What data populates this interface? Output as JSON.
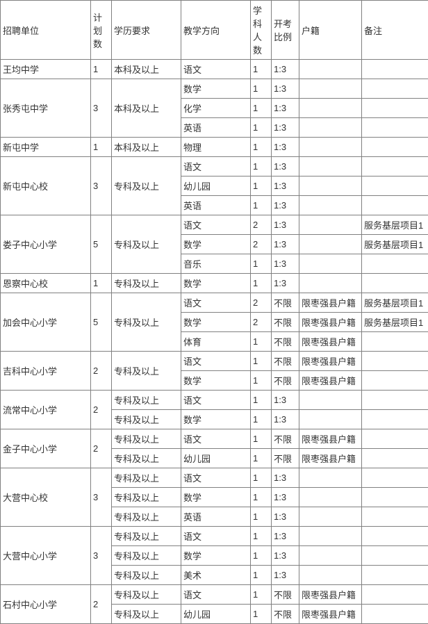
{
  "table": {
    "columns": [
      "招聘单位",
      "计划数",
      "学历要求",
      "教学方向",
      "学科人数",
      "开考比例",
      "户籍",
      "备注"
    ],
    "col_classes": [
      "col0",
      "col1",
      "col2",
      "col3",
      "col4",
      "col5",
      "col6",
      "col7"
    ],
    "background_color": "#ffffff",
    "border_color": "#808080",
    "text_color": "#333333",
    "font_size": 13,
    "rows": [
      [
        {
          "t": "王均中学"
        },
        {
          "t": "1"
        },
        {
          "t": "本科及以上"
        },
        {
          "t": "语文"
        },
        {
          "t": "1"
        },
        {
          "t": "1:3"
        },
        {
          "t": ""
        },
        {
          "t": ""
        }
      ],
      [
        {
          "t": "张秀屯中学",
          "rs": 3
        },
        {
          "t": "3",
          "rs": 3
        },
        {
          "t": "本科及以上",
          "rs": 3
        },
        {
          "t": "数学"
        },
        {
          "t": "1"
        },
        {
          "t": "1:3"
        },
        {
          "t": ""
        },
        {
          "t": ""
        }
      ],
      [
        {
          "t": "化学"
        },
        {
          "t": "1"
        },
        {
          "t": "1:3"
        },
        {
          "t": ""
        },
        {
          "t": ""
        }
      ],
      [
        {
          "t": "英语"
        },
        {
          "t": "1"
        },
        {
          "t": "1:3"
        },
        {
          "t": ""
        },
        {
          "t": ""
        }
      ],
      [
        {
          "t": "新屯中学"
        },
        {
          "t": "1"
        },
        {
          "t": "本科及以上"
        },
        {
          "t": "物理"
        },
        {
          "t": "1"
        },
        {
          "t": "1:3"
        },
        {
          "t": ""
        },
        {
          "t": ""
        }
      ],
      [
        {
          "t": "新屯中心校",
          "rs": 3
        },
        {
          "t": "3",
          "rs": 3
        },
        {
          "t": "专科及以上",
          "rs": 3
        },
        {
          "t": "语文"
        },
        {
          "t": "1"
        },
        {
          "t": "1:3"
        },
        {
          "t": ""
        },
        {
          "t": ""
        }
      ],
      [
        {
          "t": "幼儿园"
        },
        {
          "t": "1"
        },
        {
          "t": "1:3"
        },
        {
          "t": ""
        },
        {
          "t": ""
        }
      ],
      [
        {
          "t": "英语"
        },
        {
          "t": "1"
        },
        {
          "t": "1:3"
        },
        {
          "t": ""
        },
        {
          "t": ""
        }
      ],
      [
        {
          "t": "娄子中心小学",
          "rs": 3
        },
        {
          "t": "5",
          "rs": 3
        },
        {
          "t": "专科及以上",
          "rs": 3
        },
        {
          "t": "语文"
        },
        {
          "t": "2"
        },
        {
          "t": "1:3"
        },
        {
          "t": ""
        },
        {
          "t": "服务基层项目1"
        }
      ],
      [
        {
          "t": "数学"
        },
        {
          "t": "2"
        },
        {
          "t": "1:3"
        },
        {
          "t": ""
        },
        {
          "t": "服务基层项目1"
        }
      ],
      [
        {
          "t": "音乐"
        },
        {
          "t": "1"
        },
        {
          "t": "1:3"
        },
        {
          "t": ""
        },
        {
          "t": ""
        }
      ],
      [
        {
          "t": "恩察中心校"
        },
        {
          "t": "1"
        },
        {
          "t": "专科及以上"
        },
        {
          "t": "数学"
        },
        {
          "t": "1"
        },
        {
          "t": "1:3"
        },
        {
          "t": ""
        },
        {
          "t": ""
        }
      ],
      [
        {
          "t": "加会中心小学",
          "rs": 3
        },
        {
          "t": "5",
          "rs": 3
        },
        {
          "t": "专科及以上",
          "rs": 3
        },
        {
          "t": "语文"
        },
        {
          "t": "2"
        },
        {
          "t": "不限"
        },
        {
          "t": "限枣强县户籍"
        },
        {
          "t": "服务基层项目1"
        }
      ],
      [
        {
          "t": "数学"
        },
        {
          "t": "2"
        },
        {
          "t": "不限"
        },
        {
          "t": "限枣强县户籍"
        },
        {
          "t": "服务基层项目1"
        }
      ],
      [
        {
          "t": "体育"
        },
        {
          "t": "1"
        },
        {
          "t": "不限"
        },
        {
          "t": "限枣强县户籍"
        },
        {
          "t": ""
        }
      ],
      [
        {
          "t": "吉科中心小学",
          "rs": 2
        },
        {
          "t": "2",
          "rs": 2
        },
        {
          "t": "专科及以上",
          "rs": 2
        },
        {
          "t": "语文"
        },
        {
          "t": "1"
        },
        {
          "t": "不限"
        },
        {
          "t": "限枣强县户籍"
        },
        {
          "t": ""
        }
      ],
      [
        {
          "t": "数学"
        },
        {
          "t": "1"
        },
        {
          "t": "不限"
        },
        {
          "t": "限枣强县户籍"
        },
        {
          "t": ""
        }
      ],
      [
        {
          "t": "流常中心小学",
          "rs": 2
        },
        {
          "t": "2",
          "rs": 2
        },
        {
          "t": "专科及以上"
        },
        {
          "t": "语文"
        },
        {
          "t": "1"
        },
        {
          "t": "1:3"
        },
        {
          "t": ""
        },
        {
          "t": ""
        }
      ],
      [
        {
          "t": "专科及以上"
        },
        {
          "t": "数学"
        },
        {
          "t": "1"
        },
        {
          "t": "1:3"
        },
        {
          "t": ""
        },
        {
          "t": ""
        }
      ],
      [
        {
          "t": "金子中心小学",
          "rs": 2
        },
        {
          "t": "2",
          "rs": 2
        },
        {
          "t": "专科及以上"
        },
        {
          "t": "语文"
        },
        {
          "t": "1"
        },
        {
          "t": "不限"
        },
        {
          "t": "限枣强县户籍"
        },
        {
          "t": ""
        }
      ],
      [
        {
          "t": "专科及以上"
        },
        {
          "t": "幼儿园"
        },
        {
          "t": "1"
        },
        {
          "t": "不限"
        },
        {
          "t": "限枣强县户籍"
        },
        {
          "t": ""
        }
      ],
      [
        {
          "t": "大营中心校",
          "rs": 3
        },
        {
          "t": "3",
          "rs": 3
        },
        {
          "t": "专科及以上"
        },
        {
          "t": "语文"
        },
        {
          "t": "1"
        },
        {
          "t": "1:3"
        },
        {
          "t": ""
        },
        {
          "t": ""
        }
      ],
      [
        {
          "t": "专科及以上"
        },
        {
          "t": "数学"
        },
        {
          "t": "1"
        },
        {
          "t": "1:3"
        },
        {
          "t": ""
        },
        {
          "t": ""
        }
      ],
      [
        {
          "t": "专科及以上"
        },
        {
          "t": "英语"
        },
        {
          "t": "1"
        },
        {
          "t": "1:3"
        },
        {
          "t": ""
        },
        {
          "t": ""
        }
      ],
      [
        {
          "t": "大营中心小学",
          "rs": 3
        },
        {
          "t": "3",
          "rs": 3
        },
        {
          "t": "专科及以上"
        },
        {
          "t": "语文"
        },
        {
          "t": "1"
        },
        {
          "t": "1:3"
        },
        {
          "t": ""
        },
        {
          "t": ""
        }
      ],
      [
        {
          "t": "专科及以上"
        },
        {
          "t": "数学"
        },
        {
          "t": "1"
        },
        {
          "t": "1:3"
        },
        {
          "t": ""
        },
        {
          "t": ""
        }
      ],
      [
        {
          "t": "专科及以上"
        },
        {
          "t": "美术"
        },
        {
          "t": "1"
        },
        {
          "t": "1:3"
        },
        {
          "t": ""
        },
        {
          "t": ""
        }
      ],
      [
        {
          "t": "石村中心小学",
          "rs": 2
        },
        {
          "t": "2",
          "rs": 2
        },
        {
          "t": "专科及以上"
        },
        {
          "t": "语文"
        },
        {
          "t": "1"
        },
        {
          "t": "不限"
        },
        {
          "t": "限枣强县户籍"
        },
        {
          "t": ""
        }
      ],
      [
        {
          "t": "专科及以上"
        },
        {
          "t": "幼儿园"
        },
        {
          "t": "1"
        },
        {
          "t": "不限"
        },
        {
          "t": "限枣强县户籍"
        },
        {
          "t": ""
        }
      ]
    ]
  }
}
